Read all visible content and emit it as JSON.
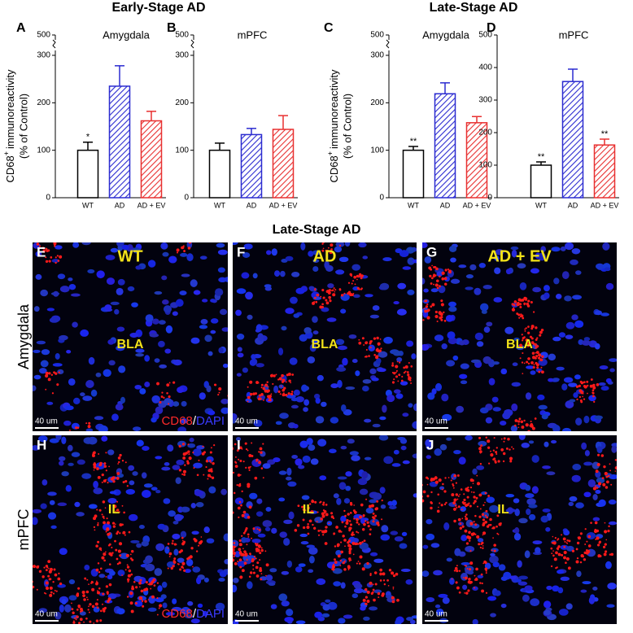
{
  "headers": {
    "early": "Early-Stage AD",
    "late": "Late-Stage AD"
  },
  "chart_data": [
    {
      "type": "bar",
      "panel": "A",
      "title": "Amygdala",
      "ylabel": {
        "main": "CD68",
        "sup": "+",
        "rest": "immunoreactivity",
        "line2": "(% of Control)"
      },
      "categories": [
        "WT",
        "AD",
        "AD + EV"
      ],
      "values": [
        100,
        235,
        162
      ],
      "errors": [
        17,
        43,
        20
      ],
      "annotations": [
        "*",
        null,
        null
      ],
      "colors": [
        "#000000",
        "#2b2bd0",
        "#e83030"
      ],
      "hatch": [
        false,
        true,
        true
      ],
      "ylim": [
        0,
        300
      ],
      "yticks": [
        0,
        100,
        200,
        300
      ],
      "ybreak_ticks": [
        500
      ]
    },
    {
      "type": "bar",
      "panel": "B",
      "title": "mPFC",
      "categories": [
        "WT",
        "AD",
        "AD + EV"
      ],
      "values": [
        100,
        133,
        144
      ],
      "errors": [
        15,
        13,
        29
      ],
      "annotations": [
        null,
        null,
        null
      ],
      "colors": [
        "#000000",
        "#2b2bd0",
        "#e83030"
      ],
      "hatch": [
        false,
        true,
        true
      ],
      "ylim": [
        0,
        300
      ],
      "yticks": [
        0,
        100,
        200,
        300
      ],
      "ybreak_ticks": [
        500
      ]
    },
    {
      "type": "bar",
      "panel": "C",
      "title": "Amygdala",
      "ylabel": {
        "main": "CD68",
        "sup": "+",
        "rest": "immunoreactivity",
        "line2": "(% of Control)"
      },
      "categories": [
        "WT",
        "AD",
        "AD + EV"
      ],
      "values": [
        100,
        219,
        158
      ],
      "errors": [
        8,
        23,
        13
      ],
      "annotations": [
        "**",
        null,
        null
      ],
      "colors": [
        "#000000",
        "#2b2bd0",
        "#e83030"
      ],
      "hatch": [
        false,
        true,
        true
      ],
      "ylim": [
        0,
        300
      ],
      "yticks": [
        0,
        100,
        200,
        300
      ],
      "ybreak_ticks": [
        500
      ]
    },
    {
      "type": "bar",
      "panel": "D",
      "title": "mPFC",
      "categories": [
        "WT",
        "AD",
        "AD + EV"
      ],
      "values": [
        100,
        357,
        162
      ],
      "errors": [
        10,
        38,
        18
      ],
      "annotations": [
        "**",
        null,
        "**"
      ],
      "colors": [
        "#000000",
        "#2b2bd0",
        "#e83030"
      ],
      "hatch": [
        false,
        true,
        true
      ],
      "ylim": [
        0,
        500
      ],
      "yticks": [
        0,
        100,
        200,
        300,
        400,
        500
      ]
    }
  ],
  "images": {
    "title": "Late-Stage AD",
    "columns": [
      "WT",
      "AD",
      "AD + EV"
    ],
    "rows": [
      {
        "label": "Amygdala",
        "region": "BLA",
        "panels": [
          "E",
          "F",
          "G"
        ]
      },
      {
        "label": "mPFC",
        "region": "IL",
        "panels": [
          "H",
          "I",
          "J"
        ]
      }
    ],
    "scale_bar": "40 um",
    "stain": {
      "red": "CD68",
      "sep": "/",
      "blue": "DAPI"
    }
  }
}
